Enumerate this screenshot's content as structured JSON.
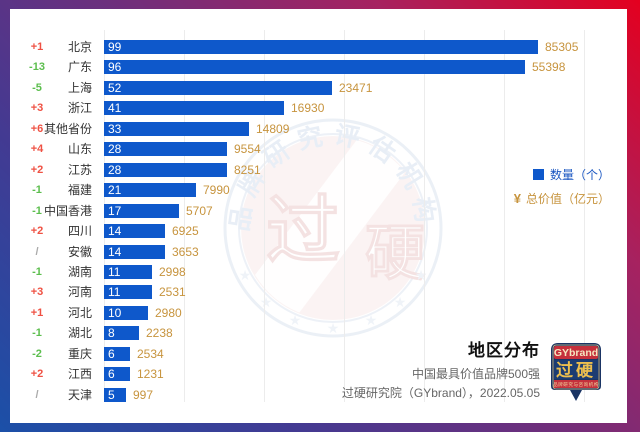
{
  "frame": {
    "gradient_from": "#1b50a8",
    "gradient_mid": "#6c2f7d",
    "gradient_to": "#e4001f"
  },
  "legend": {
    "count_label": "数量（个）",
    "value_symbol": "¥",
    "value_label": "总价值（亿元）",
    "count_color": "#1b57c2",
    "value_color": "#c7943e"
  },
  "footer": {
    "title": "地区分布",
    "subtitle1": "中国最具价值品牌500强",
    "subtitle2": "过硬研究院（GYbrand），2022.05.05"
  },
  "logo": {
    "brand": "GYbrand",
    "name": "过硬",
    "tagline": "品牌研究与咨询机构",
    "red": "#c5303c",
    "navy": "#1a3464",
    "gold": "#edbf4e"
  },
  "watermark": {
    "arc_text": "品牌研究评估机构",
    "char1": "过",
    "char2": "硬"
  },
  "chart_data": {
    "type": "bar",
    "orientation": "horizontal",
    "title": "地区分布",
    "categories": [
      "北京",
      "广东",
      "上海",
      "浙江",
      "其他省份",
      "山东",
      "江苏",
      "福建",
      "中国香港",
      "四川",
      "安徽",
      "湖南",
      "河南",
      "河北",
      "湖北",
      "重庆",
      "江西",
      "天津"
    ],
    "rank_change": [
      "+1",
      "-13",
      "-5",
      "+3",
      "+6",
      "+4",
      "+2",
      "-1",
      "-1",
      "+2",
      "/",
      "-1",
      "+3",
      "+1",
      "-1",
      "-2",
      "+2",
      "/"
    ],
    "series": [
      {
        "name": "数量（个）",
        "values": [
          99,
          96,
          52,
          41,
          33,
          28,
          28,
          21,
          17,
          14,
          14,
          11,
          11,
          10,
          8,
          6,
          6,
          5
        ]
      },
      {
        "name": "总价值（亿元）",
        "values": [
          85305,
          55398,
          23471,
          16930,
          14809,
          9554,
          8251,
          7990,
          5707,
          6925,
          3653,
          2998,
          2531,
          2980,
          2238,
          2534,
          1231,
          997
        ]
      }
    ],
    "xlim": [
      0,
      110
    ],
    "grid": true,
    "legend_position": "right",
    "bar_color": "#0e58cb",
    "count_text_color": "#ffffff",
    "value_label_color": "#c7943e",
    "change_colors": {
      "up": "#ef5143",
      "down": "#5cbe4e",
      "neutral": "#aaaaaa"
    }
  }
}
